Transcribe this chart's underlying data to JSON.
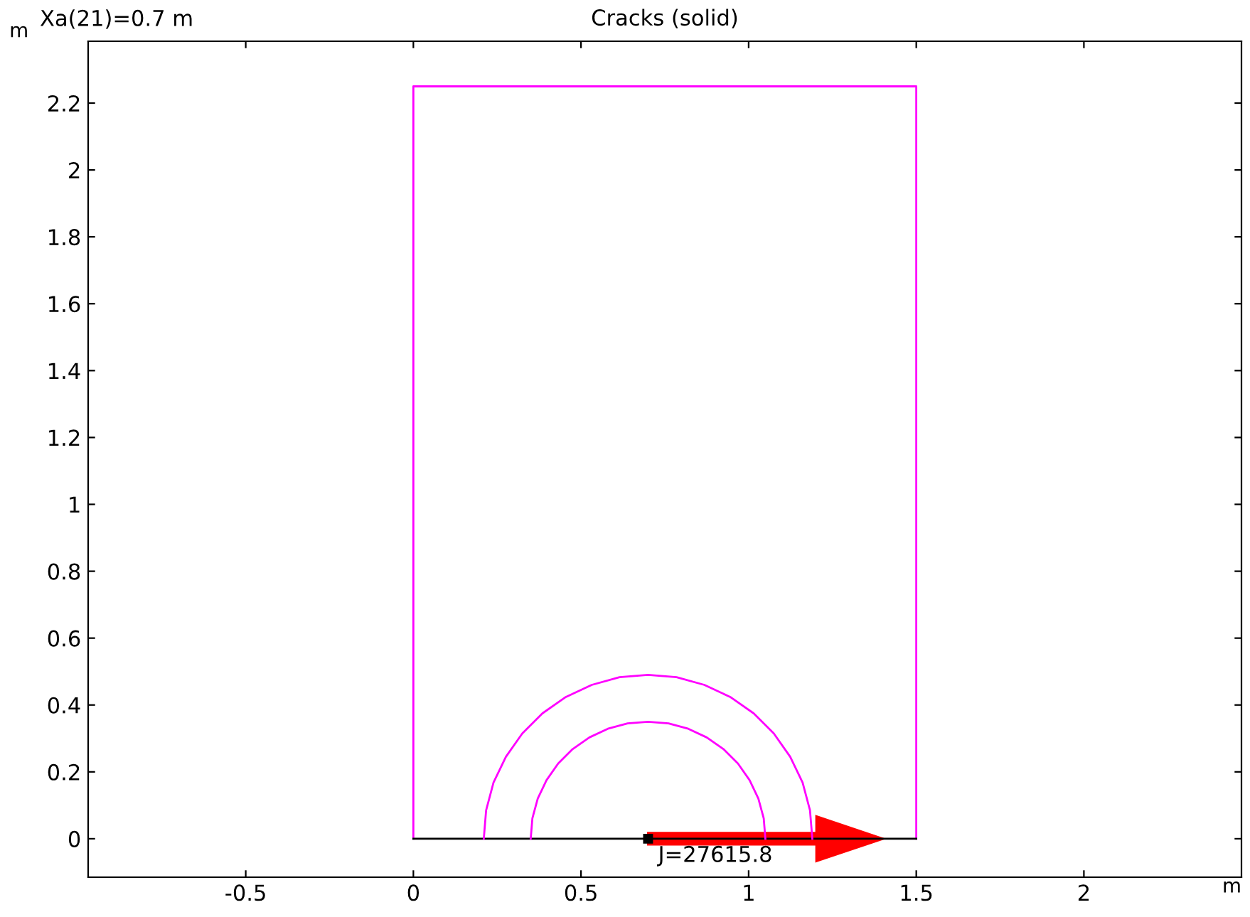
{
  "chart_data": {
    "type": "line",
    "title": "Cracks (solid)",
    "xlabel": "m",
    "ylabel": "m",
    "annotations": [
      "Xa(21)=0.7 m",
      {
        "text": "J=27615.8",
        "x": 0.7,
        "y": 0
      }
    ],
    "xlim": [
      -0.97,
      2.47
    ],
    "ylim": [
      -0.115,
      2.385
    ],
    "xticks": [
      {
        "value": -0.5,
        "label": "-0.5"
      },
      0,
      0.5,
      1,
      1.5,
      2
    ],
    "yticks": [
      0,
      0.2,
      0.4,
      0.6,
      0.8,
      1,
      1.2,
      1.4,
      1.6,
      1.8,
      2,
      2.2
    ],
    "grid": false,
    "legend": false,
    "marker": "none",
    "line_style": "solid",
    "series": [
      {
        "color": "#ff00ff",
        "x": [
          0,
          0,
          1.5,
          1.5
        ],
        "values": [
          0,
          2.25,
          2.25,
          0
        ]
      },
      {
        "color": "#000000",
        "x": [
          0,
          1.5
        ],
        "values": [
          0,
          0
        ]
      },
      {
        "color": "#ff00ff",
        "x": [
          1.19,
          1.183,
          1.161,
          1.124,
          1.075,
          1.015,
          0.945,
          0.868,
          0.785,
          0.7,
          0.615,
          0.532,
          0.455,
          0.385,
          0.325,
          0.276,
          0.239,
          0.217,
          0.21
        ],
        "values": [
          0,
          0.085,
          0.168,
          0.245,
          0.315,
          0.375,
          0.424,
          0.46,
          0.483,
          0.49,
          0.483,
          0.46,
          0.424,
          0.375,
          0.315,
          0.245,
          0.168,
          0.085,
          0
        ]
      },
      {
        "color": "#ff00ff",
        "x": [
          1.05,
          1.045,
          1.029,
          1.003,
          0.968,
          0.925,
          0.875,
          0.82,
          0.761,
          0.7,
          0.639,
          0.58,
          0.525,
          0.475,
          0.432,
          0.397,
          0.371,
          0.355,
          0.35
        ],
        "values": [
          0,
          0.061,
          0.12,
          0.175,
          0.225,
          0.268,
          0.303,
          0.329,
          0.345,
          0.35,
          0.345,
          0.329,
          0.303,
          0.268,
          0.225,
          0.175,
          0.12,
          0.061,
          0
        ]
      }
    ]
  }
}
